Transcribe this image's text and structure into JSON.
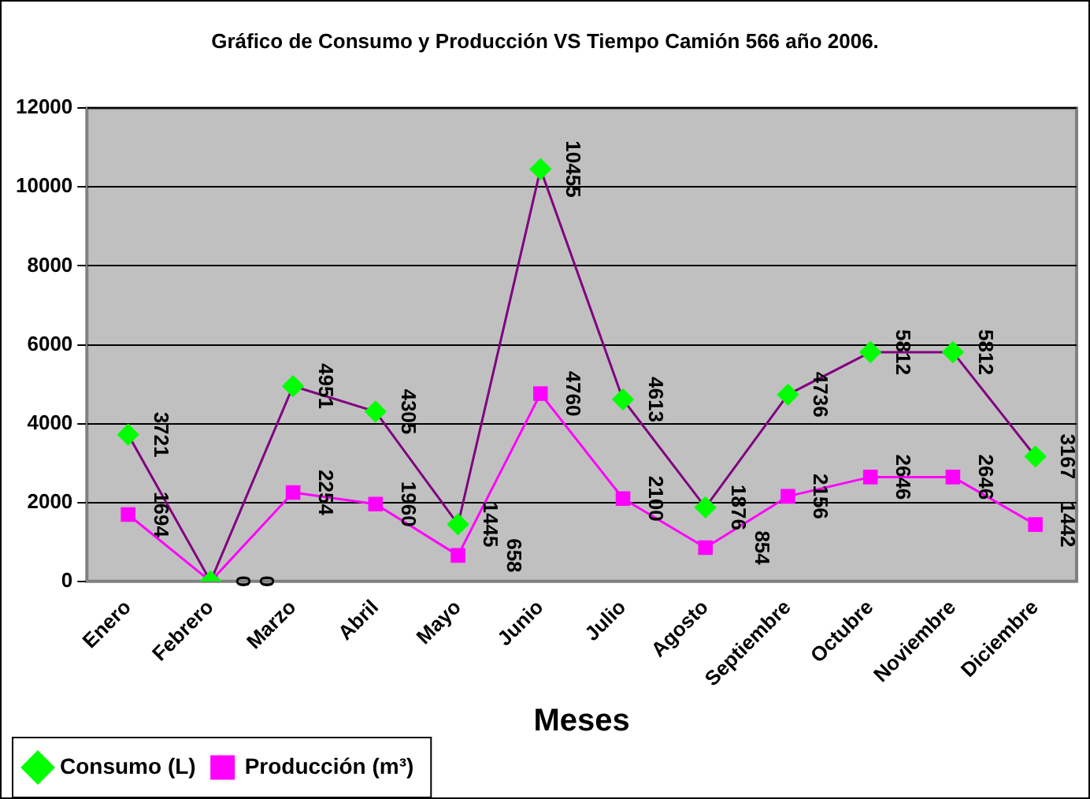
{
  "chart_data": {
    "type": "line",
    "title": "Gráfico de Consumo y Producción VS Tiempo Camión 566 año 2006.",
    "xlabel": "Meses",
    "categories": [
      "Enero",
      "Febrero",
      "Marzo",
      "Abril",
      "Mayo",
      "Junio",
      "Julio",
      "Agosto",
      "Septiembre",
      "Octubre",
      "Noviembre",
      "Diciembre"
    ],
    "series": [
      {
        "name": "Consumo (L)",
        "color": "#800080",
        "colors": [
          "#00ff00",
          "#00ff00",
          "#00ff00",
          "#00ff00",
          "#00ff00",
          "#00ff00",
          "#00ff00",
          "#00ff00",
          "#00ff00",
          "#00ff00",
          "#00ff00",
          "#00ff00"
        ],
        "marker": "diamond",
        "values": [
          3721,
          0,
          4951,
          4305,
          1445,
          10455,
          4613,
          1876,
          4736,
          5812,
          5812,
          3167
        ]
      },
      {
        "name": "Producción (m³)",
        "color": "#ff00ff",
        "marker": "square",
        "values": [
          1694,
          0,
          2254,
          1960,
          658,
          4760,
          2100,
          854,
          2156,
          2646,
          2646,
          1442
        ]
      }
    ],
    "ylim": [
      0,
      12000
    ],
    "yticks": [
      0,
      2000,
      4000,
      6000,
      8000,
      10000,
      12000
    ],
    "grid": "y",
    "legend": "bottom left",
    "data_labels": true,
    "line_style": "solid"
  }
}
